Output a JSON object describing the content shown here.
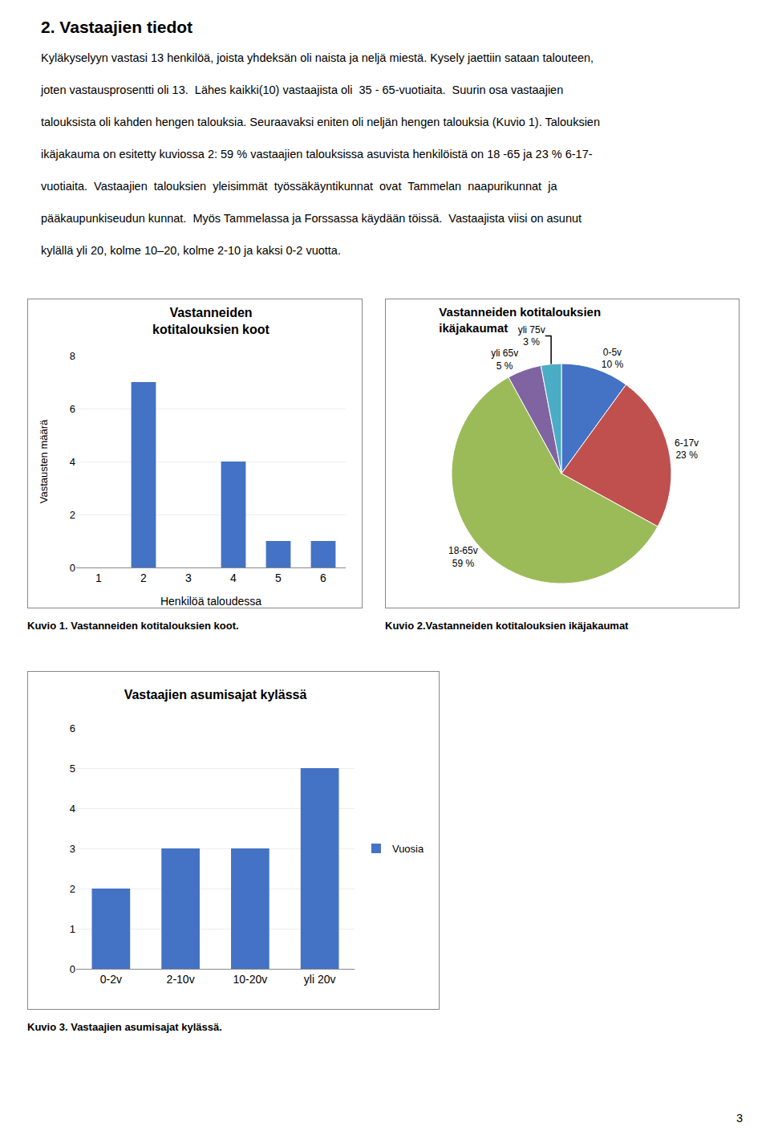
{
  "title": "2. Vastaajien tiedot",
  "subtitle": [
    "Kyläkyselyyn vastasi 13 henkilöä, joista yhdeksän oli naista ja neljä miestä. Kysely jaettiin sataan talouteen,",
    "joten vastausprosentti oli 13.  Lähes kaikki(10) vastaajista oli  35 - 65-vuotiaita.  Suurin osa vastaajien",
    "talouksista oli kahden hengen talouksia. Seuraavaksi eniten oli neljän hengen talouksia (Kuvio 1). Talouksien",
    "ikäjakauma on esitetty kuviossa 2: 59 % vastaajien talouksissa asuvista henkilöistä on 18 -65 ja 23 % 6-17-",
    "vuotiaita.  Vastaajien  talouksien  yleisimmät  työssäkäyntikunnat  ovat  Tammelan  naapurikunnat  ja",
    "pääkaupunkiseudun kunnat.  Myös Tammelassa ja Forssassa käydään töissä.  Vastaajista viisi on asunut",
    "kylällä yli 20, kolme 10–20, kolme 2-10 ja kaksi 0-2 vuotta."
  ],
  "annotations": [
    "3"
  ],
  "chart_data": [
    {
      "type": "bar",
      "title": "Vastanneiden\nkotitalouksien koot",
      "categories": [
        1,
        2,
        3,
        4,
        5,
        6
      ],
      "values": [
        0,
        7,
        0,
        4,
        1,
        1
      ],
      "color": "#4472C4",
      "xlabel": "Henkilöä taloudessa",
      "ylabel": "Vastausten määrä",
      "ylim": [
        0,
        8
      ],
      "yticks": [
        0,
        2,
        4,
        6,
        8
      ],
      "grid": true,
      "annotations": [
        "Kuvio 1. Vastanneiden kotitalouksien koot."
      ]
    },
    {
      "type": "pie",
      "title": "Vastanneiden kotitalouksien\nikäjakaumat",
      "categories": [
        "0-5v",
        "6-17v",
        "18-65v",
        "yli 65v",
        "yli 75v"
      ],
      "values": [
        10,
        23,
        59,
        5,
        3
      ],
      "value_labels": [
        "10 %",
        "23 %",
        "59 %",
        "5 %",
        "3 %"
      ],
      "colors": [
        "#4472C4",
        "#C0504D",
        "#9BBB59",
        "#8064A2",
        "#4BACC6"
      ],
      "data_labels": true,
      "annotations": [
        "Kuvio 2.Vastanneiden kotitalouksien ikäjakaumat"
      ]
    },
    {
      "type": "bar",
      "title": "Vastaajien asumisajat kylässä",
      "categories": [
        "0-2v",
        "2-10v",
        "10-20v",
        "yli 20v"
      ],
      "series": [
        {
          "name": "Vuosia",
          "color": "#4472C4",
          "values": [
            2,
            3,
            3,
            5
          ]
        }
      ],
      "ylim": [
        0,
        6
      ],
      "yticks": [
        0,
        1,
        2,
        3,
        4,
        5,
        6
      ],
      "grid": true,
      "legend": "right",
      "annotations": [
        "Kuvio 3. Vastaajien asumisajat kylässä."
      ]
    }
  ]
}
